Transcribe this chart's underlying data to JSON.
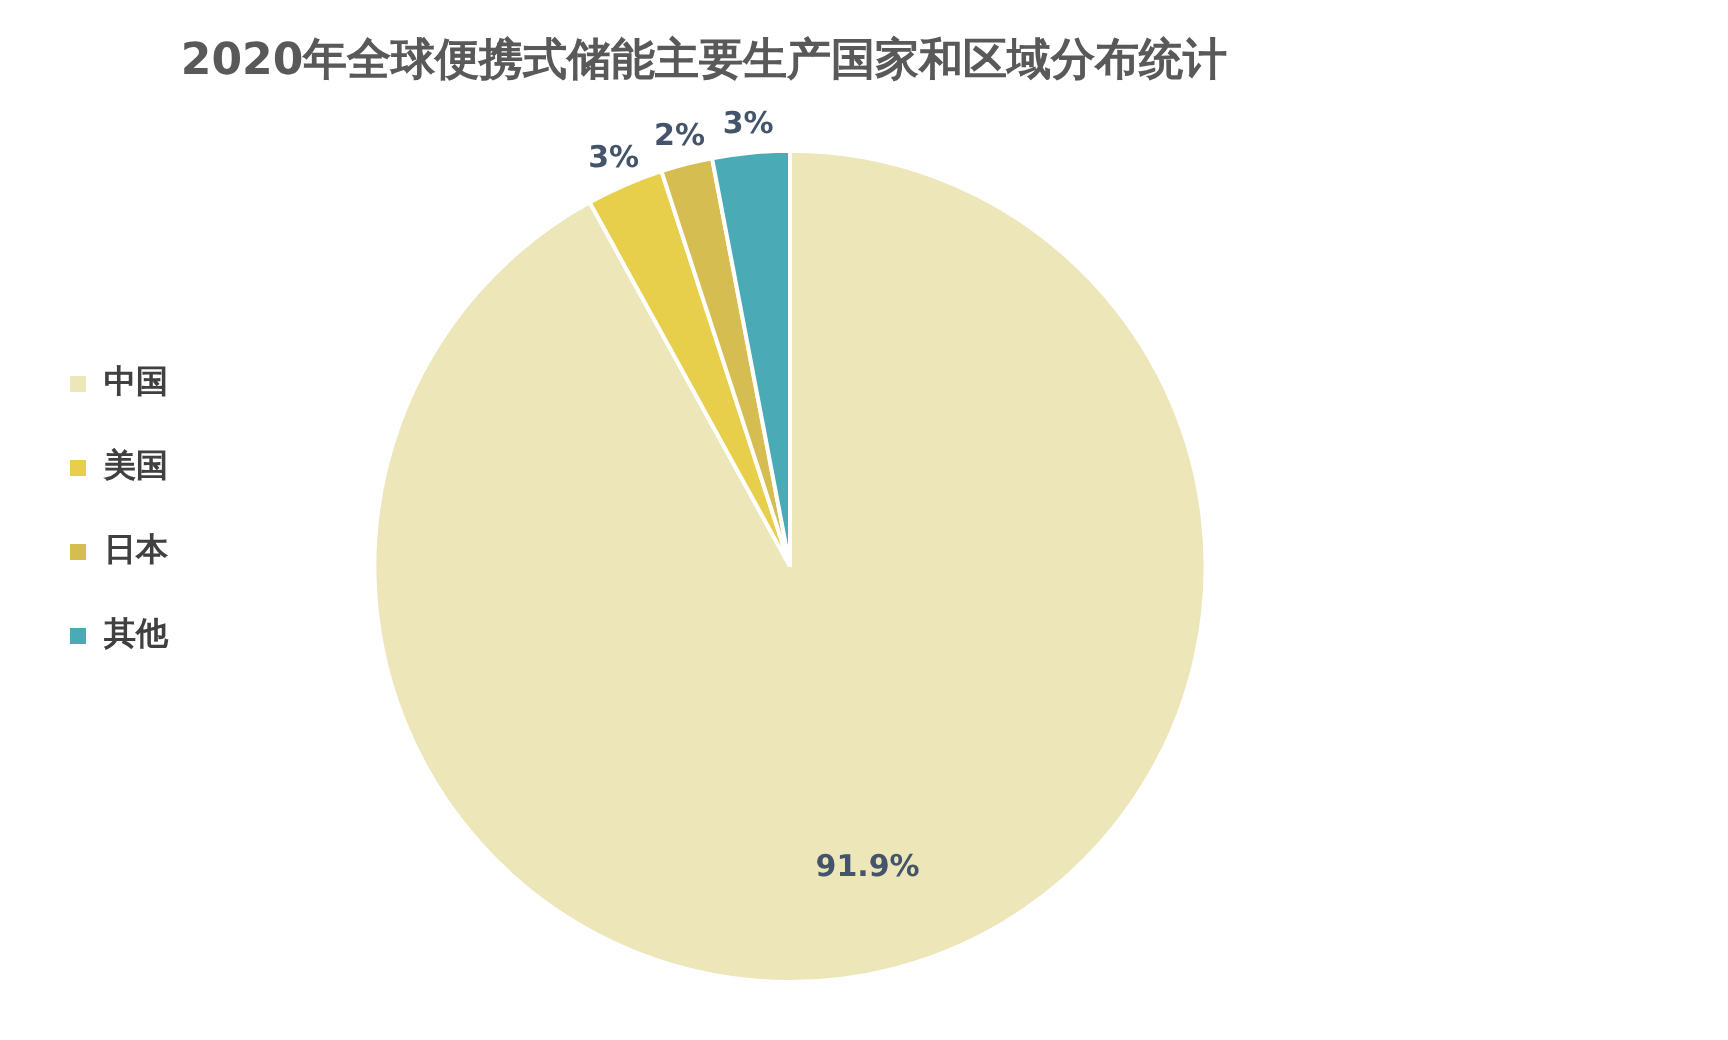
{
  "chart_data": {
    "type": "pie",
    "title": "2020年全球便携式储能主要生产国家和区域分布统计",
    "categories": [
      "中国",
      "美国",
      "日本",
      "其他"
    ],
    "values": [
      91.9,
      3,
      2,
      3
    ],
    "value_labels": [
      "91.9%",
      "3%",
      "2%",
      "3%"
    ],
    "colors": [
      "#ede6b9",
      "#e8cf4b",
      "#d6bd52",
      "#4aaab5"
    ],
    "legend": "left"
  }
}
